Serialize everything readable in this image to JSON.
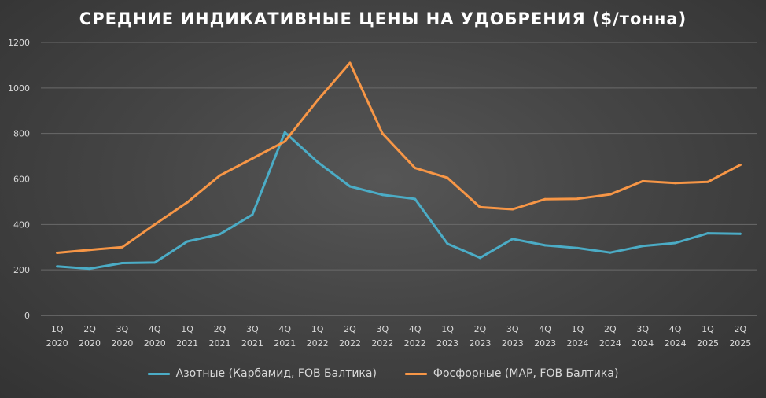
{
  "chart_data": {
    "type": "line",
    "title": "СРЕДНИЕ ИНДИКАТИВНЫЕ ЦЕНЫ НА УДОБРЕНИЯ ($/тонна)",
    "xlabel": "",
    "ylabel": "",
    "ylim": [
      0,
      1200
    ],
    "yticks": [
      0,
      200,
      400,
      600,
      800,
      1000,
      1200
    ],
    "grid": true,
    "legend_position": "bottom",
    "categories": [
      {
        "q": "1Q",
        "y": "2020"
      },
      {
        "q": "2Q",
        "y": "2020"
      },
      {
        "q": "3Q",
        "y": "2020"
      },
      {
        "q": "4Q",
        "y": "2020"
      },
      {
        "q": "1Q",
        "y": "2021"
      },
      {
        "q": "2Q",
        "y": "2021"
      },
      {
        "q": "3Q",
        "y": "2021"
      },
      {
        "q": "4Q",
        "y": "2021"
      },
      {
        "q": "1Q",
        "y": "2022"
      },
      {
        "q": "2Q",
        "y": "2022"
      },
      {
        "q": "3Q",
        "y": "2022"
      },
      {
        "q": "4Q",
        "y": "2022"
      },
      {
        "q": "1Q",
        "y": "2023"
      },
      {
        "q": "2Q",
        "y": "2023"
      },
      {
        "q": "3Q",
        "y": "2023"
      },
      {
        "q": "4Q",
        "y": "2023"
      },
      {
        "q": "1Q",
        "y": "2024"
      },
      {
        "q": "2Q",
        "y": "2024"
      },
      {
        "q": "3Q",
        "y": "2024"
      },
      {
        "q": "4Q",
        "y": "2024"
      },
      {
        "q": "1Q",
        "y": "2025"
      },
      {
        "q": "2Q",
        "y": "2025"
      }
    ],
    "series": [
      {
        "name": "Азотные (Карбамид, FOB Балтика)",
        "color": "#4BACC6",
        "values": [
          215,
          205,
          230,
          232,
          325,
          357,
          443,
          805,
          675,
          567,
          530,
          512,
          315,
          253,
          336,
          308,
          296,
          276,
          305,
          318,
          361,
          359
        ]
      },
      {
        "name": "Фосфорные (MAP, FOB Балтика)",
        "color": "#F79646",
        "values": [
          275,
          288,
          300,
          400,
          497,
          615,
          690,
          765,
          945,
          1110,
          800,
          648,
          605,
          476,
          467,
          511,
          513,
          532,
          590,
          582,
          587,
          662
        ]
      }
    ]
  }
}
